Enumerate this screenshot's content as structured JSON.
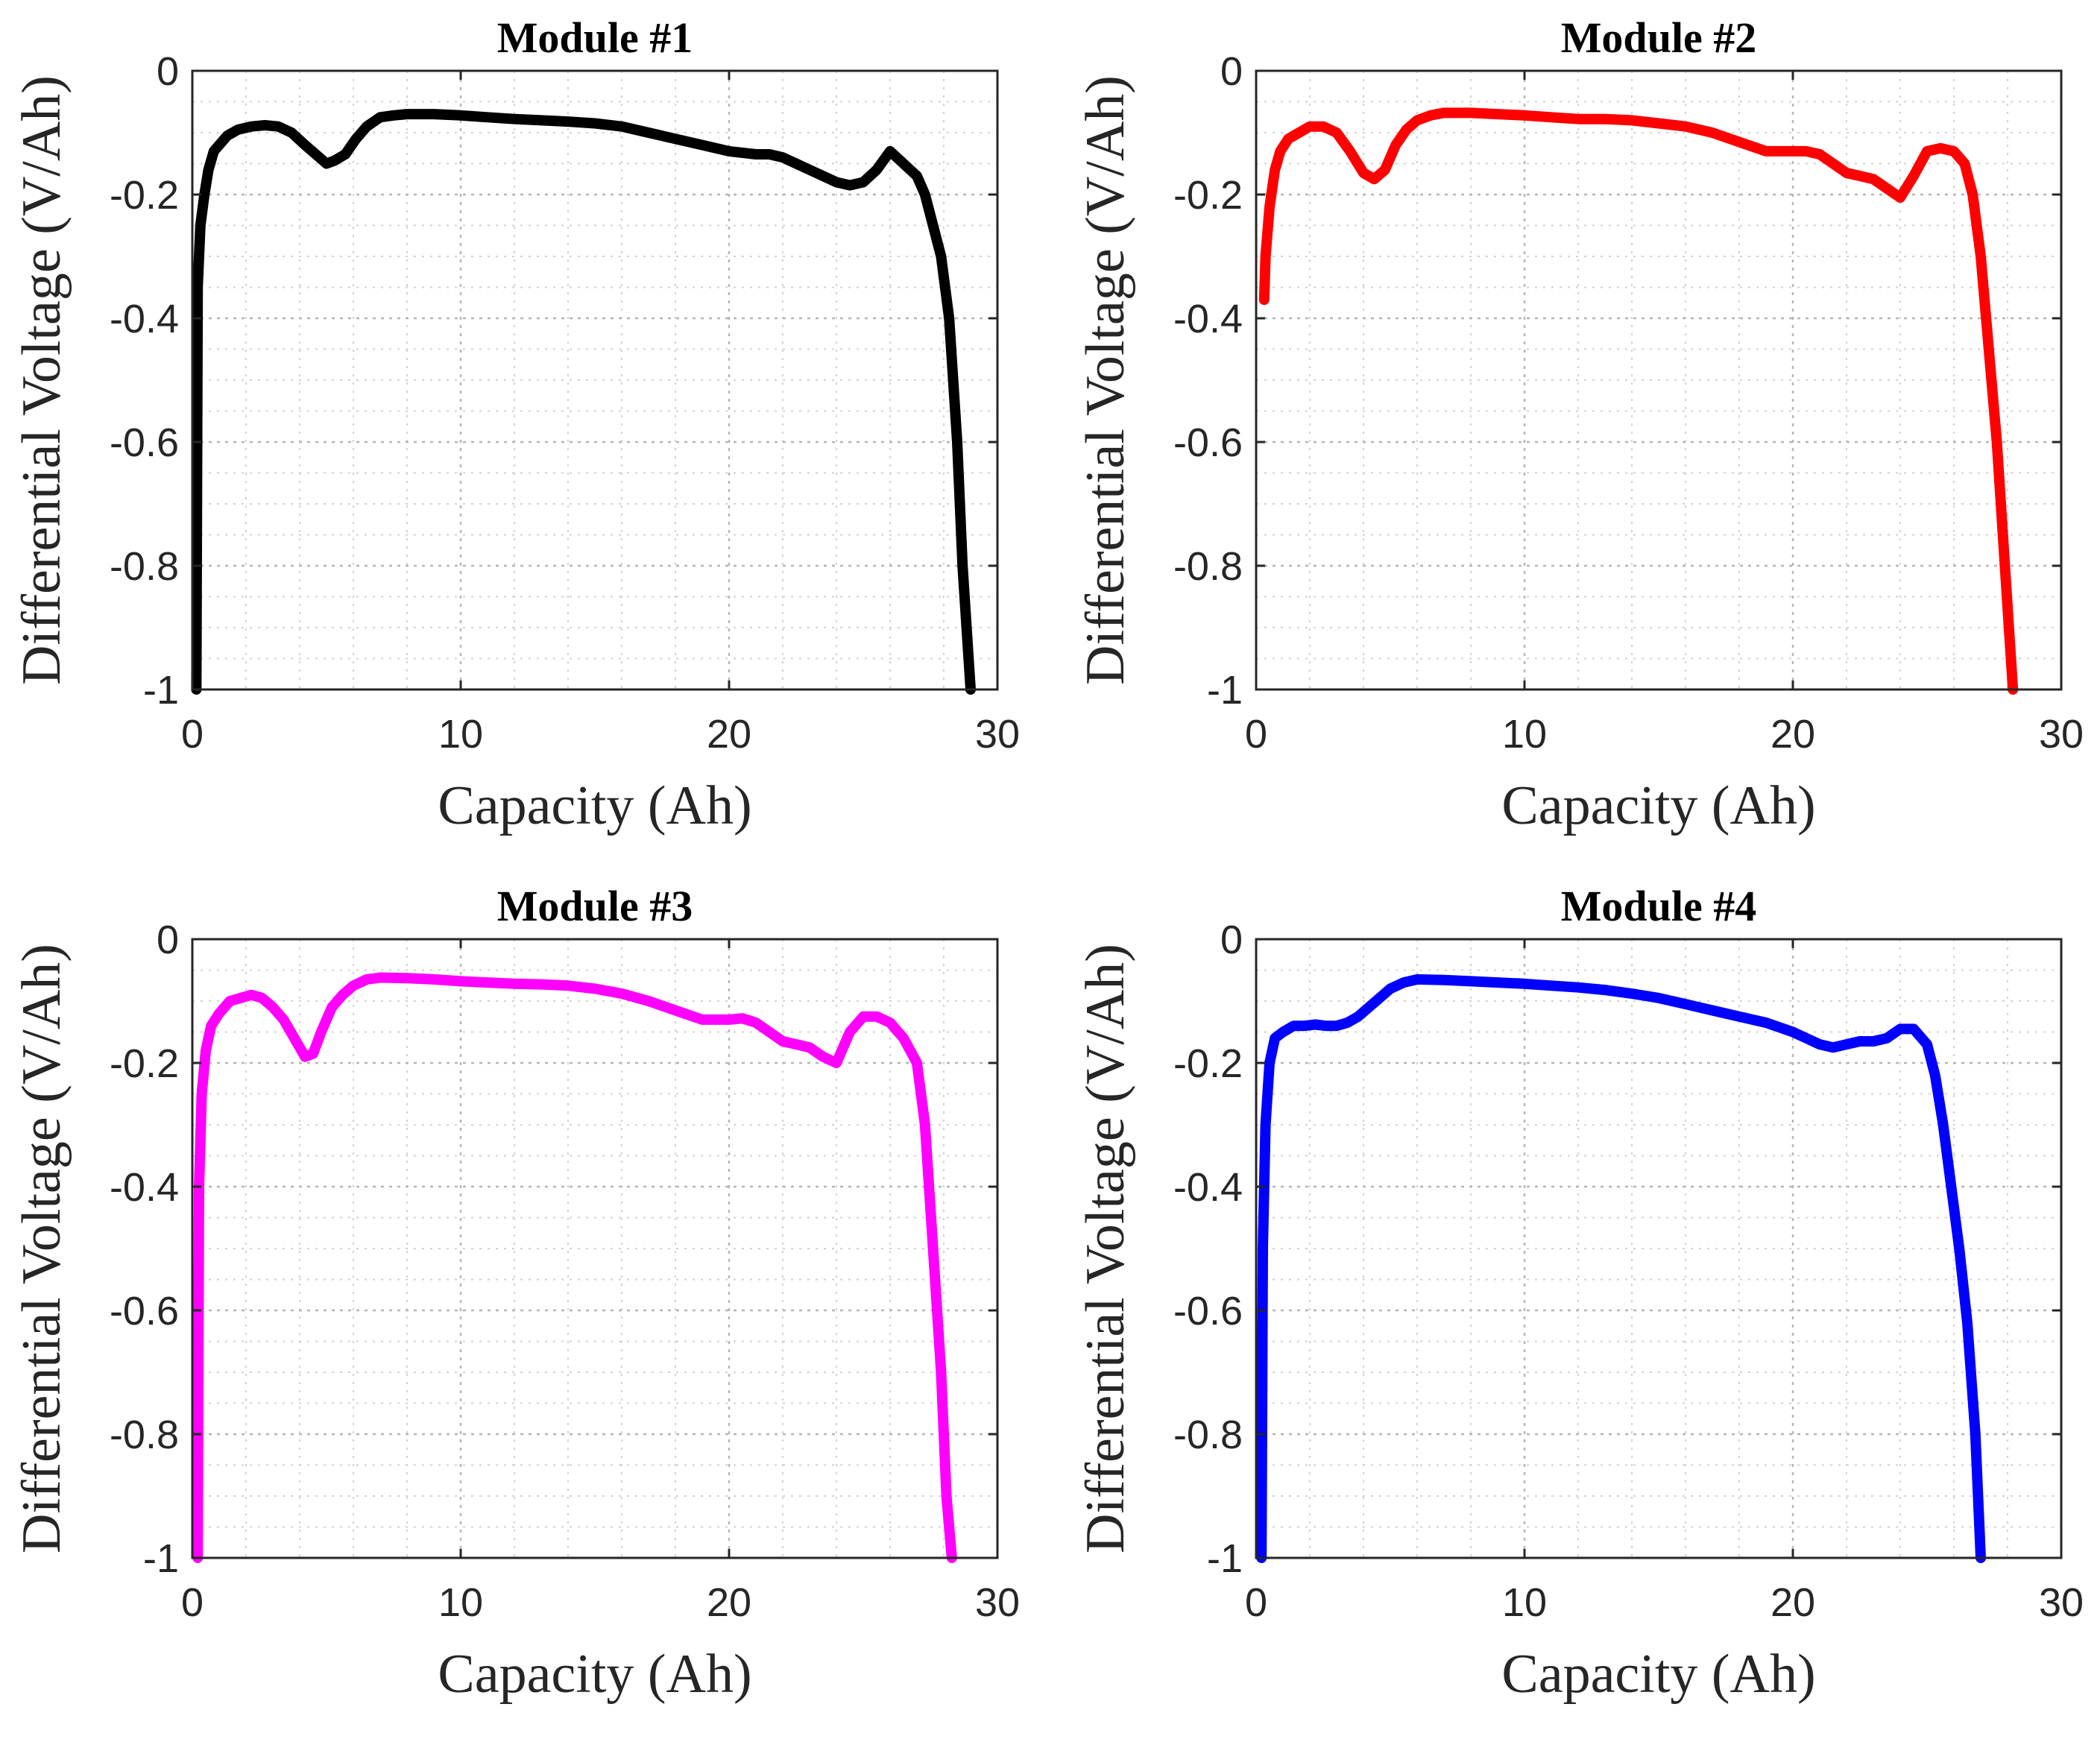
{
  "chart_data": [
    {
      "type": "line",
      "title": "Module #1",
      "xlabel": "Capacity (Ah)",
      "ylabel": "Differential Voltage (V/Ah)",
      "xlim": [
        0,
        30
      ],
      "ylim": [
        -1,
        0
      ],
      "xticks": [
        "0",
        "10",
        "20",
        "30"
      ],
      "yticks": [
        "0",
        "-0.2",
        "-0.4",
        "-0.6",
        "-0.8",
        "-1"
      ],
      "grid": true,
      "color": "#000000",
      "series": [
        {
          "name": "Module #1",
          "x": [
            0.15,
            0.2,
            0.3,
            0.45,
            0.6,
            0.8,
            1.0,
            1.3,
            1.7,
            2.2,
            2.7,
            3.2,
            3.7,
            4.2,
            4.6,
            5.0,
            5.3,
            5.7,
            6.1,
            6.5,
            7.0,
            7.5,
            8.0,
            8.5,
            9.0,
            10,
            11,
            12,
            13,
            14,
            15,
            16,
            17,
            18,
            19,
            20,
            21,
            21.5,
            22,
            22.5,
            23,
            23.5,
            24,
            24.5,
            25,
            25.5,
            26.0,
            26.5,
            27.0,
            27.3,
            27.6,
            27.9,
            28.2,
            28.5,
            28.7,
            29.0
          ],
          "y": [
            -1.0,
            -0.35,
            -0.25,
            -0.2,
            -0.16,
            -0.13,
            -0.12,
            -0.105,
            -0.095,
            -0.09,
            -0.088,
            -0.09,
            -0.1,
            -0.12,
            -0.135,
            -0.15,
            -0.145,
            -0.135,
            -0.11,
            -0.09,
            -0.075,
            -0.072,
            -0.07,
            -0.07,
            -0.07,
            -0.072,
            -0.075,
            -0.078,
            -0.08,
            -0.082,
            -0.085,
            -0.09,
            -0.1,
            -0.11,
            -0.12,
            -0.13,
            -0.135,
            -0.135,
            -0.14,
            -0.15,
            -0.16,
            -0.17,
            -0.18,
            -0.185,
            -0.18,
            -0.16,
            -0.13,
            -0.15,
            -0.17,
            -0.2,
            -0.25,
            -0.3,
            -0.4,
            -0.6,
            -0.8,
            -1.0
          ]
        }
      ]
    },
    {
      "type": "line",
      "title": "Module #2",
      "xlabel": "Capacity (Ah)",
      "ylabel": "Differential Voltage (V/Ah)",
      "xlim": [
        0,
        30
      ],
      "ylim": [
        -1,
        0
      ],
      "xticks": [
        "0",
        "10",
        "20",
        "30"
      ],
      "yticks": [
        "0",
        "-0.2",
        "-0.4",
        "-0.6",
        "-0.8",
        "-1"
      ],
      "grid": true,
      "color": "#ff0000",
      "series": [
        {
          "name": "Module #2",
          "x": [
            0.3,
            0.35,
            0.5,
            0.7,
            0.9,
            1.2,
            1.6,
            2.0,
            2.5,
            3.0,
            3.5,
            4.0,
            4.4,
            4.8,
            5.2,
            5.6,
            6.0,
            6.5,
            7.0,
            8,
            9,
            10,
            11,
            12,
            13,
            14,
            15,
            16,
            17,
            18,
            19,
            20,
            20.5,
            21,
            21.5,
            22,
            22.5,
            23,
            23.5,
            24.0,
            24.5,
            25.0,
            25.5,
            26.0,
            26.4,
            26.7,
            27.0,
            27.3,
            27.6,
            27.9,
            28.2
          ],
          "y": [
            -0.37,
            -0.3,
            -0.22,
            -0.16,
            -0.13,
            -0.11,
            -0.1,
            -0.09,
            -0.09,
            -0.1,
            -0.13,
            -0.165,
            -0.175,
            -0.16,
            -0.12,
            -0.095,
            -0.08,
            -0.072,
            -0.068,
            -0.068,
            -0.07,
            -0.072,
            -0.075,
            -0.078,
            -0.078,
            -0.08,
            -0.085,
            -0.09,
            -0.1,
            -0.115,
            -0.13,
            -0.13,
            -0.13,
            -0.135,
            -0.15,
            -0.165,
            -0.17,
            -0.175,
            -0.19,
            -0.205,
            -0.17,
            -0.13,
            -0.125,
            -0.13,
            -0.15,
            -0.2,
            -0.3,
            -0.45,
            -0.6,
            -0.8,
            -1.0
          ]
        }
      ]
    },
    {
      "type": "line",
      "title": "Module #3",
      "xlabel": "Capacity (Ah)",
      "ylabel": "Differential Voltage (V/Ah)",
      "xlim": [
        0,
        30
      ],
      "ylim": [
        -1,
        0
      ],
      "xticks": [
        "0",
        "10",
        "20",
        "30"
      ],
      "yticks": [
        "0",
        "-0.2",
        "-0.4",
        "-0.6",
        "-0.8",
        "-1"
      ],
      "grid": true,
      "color": "#ff00ff",
      "series": [
        {
          "name": "Module #3",
          "x": [
            0.2,
            0.25,
            0.35,
            0.5,
            0.7,
            1.0,
            1.4,
            1.8,
            2.2,
            2.6,
            3.0,
            3.4,
            3.8,
            4.2,
            4.5,
            4.8,
            5.2,
            5.6,
            6.0,
            6.5,
            7,
            8,
            9,
            10,
            11,
            12,
            13,
            14,
            15,
            16,
            17,
            18,
            19,
            20,
            20.5,
            21,
            21.5,
            22,
            22.5,
            23,
            23.5,
            24.0,
            24.5,
            25.0,
            25.5,
            26.0,
            26.5,
            27.0,
            27.3,
            27.6,
            27.9,
            28.1,
            28.3
          ],
          "y": [
            -1.0,
            -0.4,
            -0.25,
            -0.18,
            -0.14,
            -0.12,
            -0.1,
            -0.095,
            -0.09,
            -0.095,
            -0.11,
            -0.13,
            -0.16,
            -0.19,
            -0.185,
            -0.15,
            -0.11,
            -0.09,
            -0.075,
            -0.065,
            -0.062,
            -0.063,
            -0.065,
            -0.068,
            -0.07,
            -0.072,
            -0.073,
            -0.075,
            -0.08,
            -0.088,
            -0.1,
            -0.115,
            -0.13,
            -0.13,
            -0.128,
            -0.135,
            -0.15,
            -0.165,
            -0.17,
            -0.175,
            -0.19,
            -0.2,
            -0.15,
            -0.125,
            -0.125,
            -0.135,
            -0.16,
            -0.2,
            -0.3,
            -0.5,
            -0.7,
            -0.9,
            -1.0
          ]
        }
      ]
    },
    {
      "type": "line",
      "title": "Module #4",
      "xlabel": "Capacity (Ah)",
      "ylabel": "Differential Voltage (V/Ah)",
      "xlim": [
        0,
        30
      ],
      "ylim": [
        -1,
        0
      ],
      "xticks": [
        "0",
        "10",
        "20",
        "30"
      ],
      "yticks": [
        "0",
        "-0.2",
        "-0.4",
        "-0.6",
        "-0.8",
        "-1"
      ],
      "grid": true,
      "color": "#0000ff",
      "series": [
        {
          "name": "Module #4",
          "x": [
            0.2,
            0.25,
            0.35,
            0.5,
            0.7,
            1.0,
            1.4,
            1.8,
            2.2,
            2.6,
            3.0,
            3.4,
            3.8,
            4.2,
            4.6,
            5.0,
            5.5,
            6.0,
            7,
            8,
            9,
            10,
            11,
            12,
            13,
            14,
            15,
            16,
            17,
            18,
            19,
            20,
            20.5,
            21,
            21.5,
            22,
            22.5,
            23,
            23.5,
            24.0,
            24.5,
            25.0,
            25.3,
            25.6,
            25.9,
            26.2,
            26.5,
            26.8,
            27.0
          ],
          "y": [
            -1.0,
            -0.5,
            -0.3,
            -0.2,
            -0.16,
            -0.15,
            -0.14,
            -0.14,
            -0.138,
            -0.14,
            -0.14,
            -0.135,
            -0.125,
            -0.11,
            -0.095,
            -0.08,
            -0.07,
            -0.065,
            -0.066,
            -0.068,
            -0.07,
            -0.072,
            -0.075,
            -0.078,
            -0.082,
            -0.088,
            -0.095,
            -0.105,
            -0.115,
            -0.125,
            -0.135,
            -0.15,
            -0.16,
            -0.17,
            -0.175,
            -0.17,
            -0.165,
            -0.165,
            -0.16,
            -0.145,
            -0.145,
            -0.17,
            -0.22,
            -0.3,
            -0.4,
            -0.5,
            -0.62,
            -0.8,
            -1.0
          ]
        }
      ]
    }
  ]
}
